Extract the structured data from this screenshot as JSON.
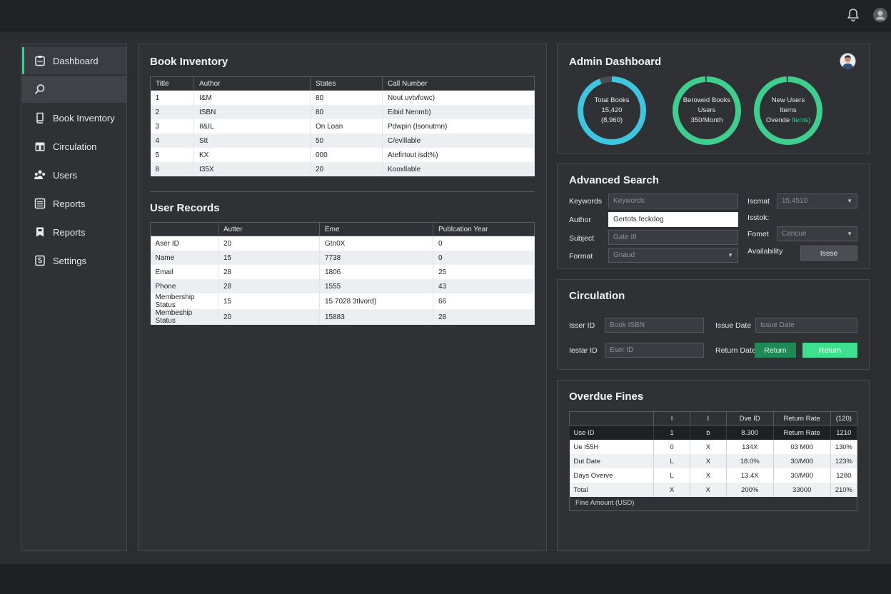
{
  "sidebar": {
    "items": [
      {
        "label": "Dashboard",
        "icon": "clipboard-icon"
      },
      {
        "label": "",
        "icon": "search-icon"
      },
      {
        "label": "Book Inventory",
        "icon": "book-icon"
      },
      {
        "label": "Circulation",
        "icon": "calendar-icon"
      },
      {
        "label": "Users",
        "icon": "users-icon"
      },
      {
        "label": "Reports",
        "icon": "list-icon"
      },
      {
        "label": "Reports",
        "icon": "bookmark-icon"
      },
      {
        "label": "Settings",
        "icon": "settings-icon"
      }
    ]
  },
  "inventory": {
    "title": "Book Inventory",
    "columns": [
      "Title",
      "Author",
      "States",
      "Call Number"
    ],
    "rows": [
      [
        "1",
        "I&M",
        "80",
        "Nout uvtvfowc)"
      ],
      [
        "2",
        "ISBN",
        "80",
        "Eibid Nenmb)"
      ],
      [
        "3",
        "II&IL",
        "On Loan",
        "Pdwpin (Isonutmn)"
      ],
      [
        "4",
        "Stt",
        "50",
        "C/evillable"
      ],
      [
        "5",
        "KX",
        "000",
        "Atefirtout isdt%)"
      ],
      [
        "8",
        "I35X",
        "20",
        "Kooxllable"
      ]
    ]
  },
  "users": {
    "title": "User Records",
    "columns": [
      "",
      "Autter",
      "Eme",
      "Publcation Year"
    ],
    "rows": [
      [
        "Aser ID",
        "20",
        "Gtn0X",
        "0"
      ],
      [
        "Name",
        "15",
        "7738",
        "0"
      ],
      [
        "Email",
        "28",
        "1806",
        "25"
      ],
      [
        "Phone",
        "28",
        "1555",
        "43"
      ],
      [
        "Membership Status",
        "15",
        "15 7028 3tlvord)",
        "66"
      ],
      [
        "Membeship Status",
        "20",
        "15883",
        "28"
      ]
    ]
  },
  "admin": {
    "title": "Admin Dashboard",
    "donuts": [
      {
        "lines": [
          "Total Books",
          "15,420",
          "(8,960)"
        ],
        "color": "#3ec6e0",
        "fraction": 0.94
      },
      {
        "lines": [
          "Berowed Books",
          "Users",
          "350/Month"
        ],
        "color": "#3ecf8e",
        "fraction": 0.99
      },
      {
        "lines": [
          "New Users",
          "Items",
          "Ovende Items)"
        ],
        "color": "#3ecf8e",
        "highlight": "Items)",
        "fraction": 0.99
      }
    ]
  },
  "search": {
    "title": "Advanced Search",
    "labels": {
      "keywords": "Keywords",
      "author": "Author",
      "subject": "Subject",
      "format": "Format",
      "iscmat": "Iscmat",
      "isstok": "Isstok:",
      "fomet": "Fomet",
      "availability": "Availability"
    },
    "fields": {
      "keywords": "Keywords",
      "author": "Gertots feckdog",
      "subject": "Gate III",
      "format": "Gnaud",
      "iscmat": "15,4510",
      "fomet": "Cancue"
    },
    "issue_button": "Issse"
  },
  "circulation": {
    "title": "Circulation",
    "labels": {
      "user_id": "Isser ID",
      "issue_date": "Issue Date",
      "lestar_id": "Iestar ID",
      "return_date": "Return Date"
    },
    "fields": {
      "book_isbn": "Book ISBN",
      "issue_date": "Issue Date",
      "eser_id": "Eser ID"
    },
    "return_button_1": "Return",
    "return_button_2": "Return"
  },
  "fines": {
    "title": "Overdue Fines",
    "header": [
      "",
      "I",
      "I",
      "Dve ID",
      "Return Rate",
      "(120)"
    ],
    "rows": [
      [
        "Use ID",
        "1",
        "b",
        "8.300",
        "Return Rate",
        "1210"
      ],
      [
        "Ue I55H",
        "0",
        "X",
        "134X",
        "03 M00",
        "130%"
      ],
      [
        "Dut Date",
        "L",
        "X",
        "18.0%",
        "30/M00",
        "123%"
      ],
      [
        "Days Overve",
        "L",
        "X",
        "13.4X",
        "30/M00",
        "1280"
      ],
      [
        "Total",
        "X",
        "X",
        "200%",
        "33000",
        "210%"
      ]
    ],
    "footer": "Fine Amount (USD)"
  },
  "colors": {
    "accent": "#3ecf8e",
    "cyan": "#3ec6e0",
    "return_dark": "#1f8a55",
    "return_bright": "#3ee08f"
  }
}
